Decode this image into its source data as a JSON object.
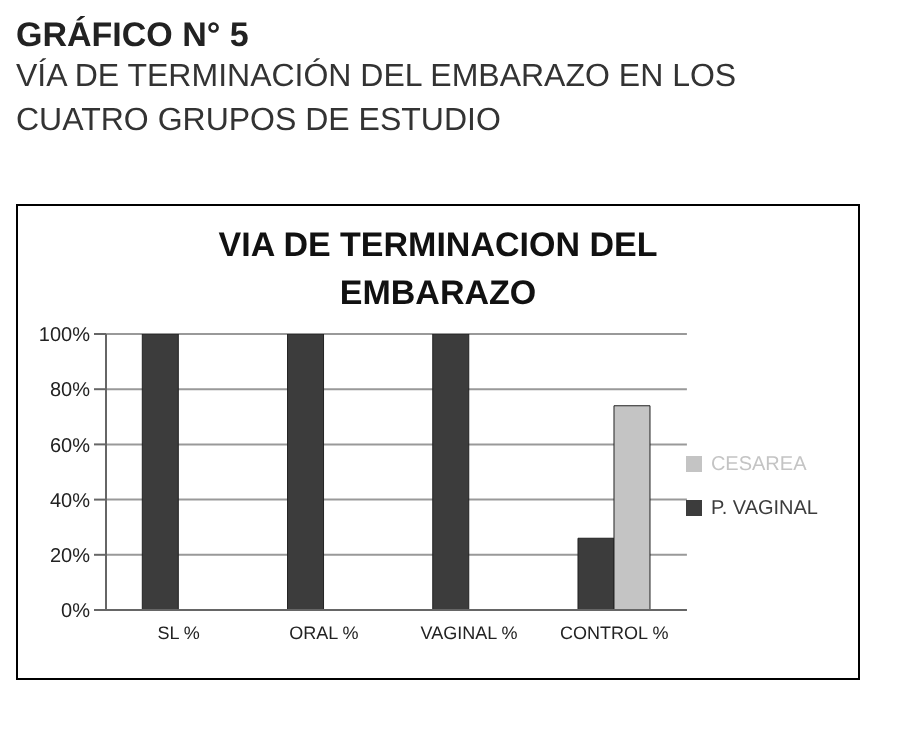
{
  "chart_data": {
    "type": "bar",
    "title": "VIA DE TERMINACION DEL EMBARAZO",
    "subtitle": "VÍA DE TERMINACIÓN DEL EMBARAZO EN LOS CUATRO GRUPOS DE ESTUDIO",
    "annotations": [
      "GRÁFICO N° 5"
    ],
    "categories": [
      "SL %",
      "ORAL %",
      "VAGINAL %",
      "CONTROL %"
    ],
    "series": [
      {
        "name": "P. VAGINAL",
        "color": "#3c3c3c",
        "values": [
          100,
          100,
          100,
          26
        ]
      },
      {
        "name": "CESAREA",
        "color": "#c4c4c4",
        "values": [
          0,
          0,
          0,
          74
        ]
      }
    ],
    "ylim": [
      0,
      100
    ],
    "yticks": [
      {
        "value": 0,
        "label": "0%"
      },
      {
        "value": 20,
        "label": "20%"
      },
      {
        "value": 40,
        "label": "40%"
      },
      {
        "value": 60,
        "label": "60%"
      },
      {
        "value": 80,
        "label": "80%"
      },
      {
        "value": 100,
        "label": "100%"
      }
    ],
    "grid": "y",
    "legend": "right"
  }
}
